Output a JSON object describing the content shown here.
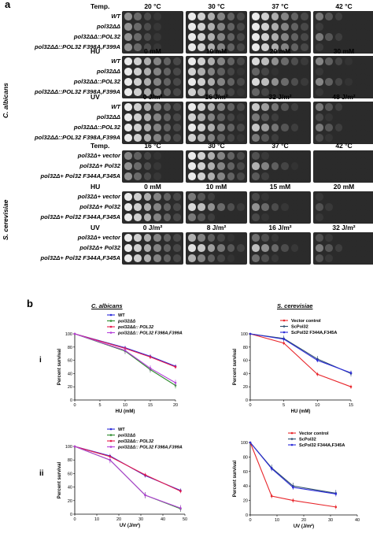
{
  "panel_a": {
    "letter": "a",
    "species": [
      "C. albicans",
      "S. cerevisiae"
    ],
    "blocks": [
      {
        "cond": "Temp.",
        "cols": [
          "20 °C",
          "30 °C",
          "37 °C",
          "42 °C"
        ],
        "rows": [
          "WT",
          "pol32ΔΔ",
          "pol32ΔΔ::POL32",
          "pol32ΔΔ::POL32 F398A,F399A"
        ],
        "growth": [
          [
            0.6,
            1,
            1,
            0.5
          ],
          [
            0.6,
            1,
            1,
            0.15
          ],
          [
            0.6,
            1,
            1,
            0.5
          ],
          [
            0.6,
            1,
            1,
            0.15
          ]
        ]
      },
      {
        "cond": "HU",
        "cols": [
          "0 mM",
          "10 mM",
          "20 mM",
          "30 mM"
        ],
        "rows": [
          "WT",
          "pol32ΔΔ",
          "pol32ΔΔ::POL32",
          "pol32ΔΔ::POL32 F398A,F399A"
        ],
        "growth": [
          [
            1,
            1,
            0.9,
            0.55
          ],
          [
            1,
            0.85,
            0.4,
            0.1
          ],
          [
            1,
            1,
            0.9,
            0.55
          ],
          [
            1,
            0.85,
            0.4,
            0.1
          ]
        ]
      },
      {
        "cond": "UV",
        "cols": [
          "0 J/m²",
          "16 J/m²",
          "32 J/m²",
          "48 J/m²"
        ],
        "rows": [
          "WT",
          "pol32ΔΔ",
          "pol32ΔΔ::POL32",
          "pol32ΔΔ::POL32 F398A,F399A"
        ],
        "growth": [
          [
            1,
            1,
            0.8,
            0.5
          ],
          [
            1,
            0.85,
            0.5,
            0.25
          ],
          [
            1,
            1,
            0.8,
            0.5
          ],
          [
            1,
            0.85,
            0.5,
            0.25
          ]
        ]
      },
      {
        "cond": "Temp.",
        "cols": [
          "16 °C",
          "30 °C",
          "37 °C",
          "42 °C"
        ],
        "rows": [
          "pol32Δ+ vector",
          "pol32Δ+ Pol32",
          "pol32Δ+ Pol32 F344A,F345A"
        ],
        "growth": [
          [
            0.55,
            1,
            0.3,
            0
          ],
          [
            0.6,
            1,
            0.7,
            0
          ],
          [
            0.6,
            1,
            0.35,
            0
          ]
        ]
      },
      {
        "cond": "HU",
        "cols": [
          "0 mM",
          "10 mM",
          "15 mM",
          "20 mM"
        ],
        "rows": [
          "pol32Δ+ vector",
          "pol32Δ+ Pol32",
          "pol32Δ+ Pol32 F344A,F345A"
        ],
        "growth": [
          [
            1,
            0.5,
            0.25,
            0.1
          ],
          [
            1,
            0.9,
            0.6,
            0.3
          ],
          [
            1,
            0.5,
            0.25,
            0.1
          ]
        ]
      },
      {
        "cond": "UV",
        "cols": [
          "0 J/m²",
          "8 J/m²",
          "16 J/m²",
          "32 J/m²"
        ],
        "rows": [
          "pol32Δ+ vector",
          "pol32Δ+ Pol32",
          "pol32Δ+ Pol32 F344A,F345A"
        ],
        "growth": [
          [
            1,
            0.7,
            0.45,
            0.3
          ],
          [
            1,
            0.95,
            0.75,
            0.5
          ],
          [
            1,
            0.7,
            0.45,
            0.3
          ]
        ]
      }
    ]
  },
  "panel_b": {
    "letter": "b",
    "col_titles": [
      "C. albicans",
      "S. cerevisiae"
    ],
    "row_labels": [
      "i",
      "ii"
    ]
  },
  "chart_data": [
    {
      "type": "line",
      "xlabel": "HU (mM)",
      "ylabel": "Percent survival",
      "xlim": [
        0,
        20
      ],
      "ylim": [
        0,
        100
      ],
      "xticks": [
        0,
        5,
        10,
        15,
        20
      ],
      "yticks": [
        0,
        20,
        40,
        60,
        80,
        100
      ],
      "x": [
        0,
        10,
        15,
        20
      ],
      "series": [
        {
          "name": "WT",
          "color": "#2b2bd9",
          "values": [
            100,
            79,
            66,
            51
          ]
        },
        {
          "name": "pol32ΔΔ",
          "color": "#2e8b2e",
          "values": [
            100,
            74,
            46,
            22
          ]
        },
        {
          "name": "pol32ΔΔ:: POL32",
          "color": "#e6194b",
          "values": [
            100,
            78,
            65,
            50
          ]
        },
        {
          "name": "pol32ΔΔ:: POL32 F398A,F399A",
          "color": "#b43fd9",
          "values": [
            100,
            75,
            48,
            26
          ]
        }
      ]
    },
    {
      "type": "line",
      "xlabel": "HU (mM)",
      "ylabel": "Percent survival",
      "xlim": [
        0,
        15
      ],
      "ylim": [
        0,
        100
      ],
      "xticks": [
        0,
        5,
        10,
        15
      ],
      "yticks": [
        0,
        20,
        40,
        60,
        80,
        100
      ],
      "x": [
        0,
        5,
        10,
        15
      ],
      "series": [
        {
          "name": "Vector control",
          "color": "#e8262b",
          "values": [
            100,
            86,
            39,
            20
          ]
        },
        {
          "name": "ScPol32",
          "color": "#2f4f6f",
          "values": [
            100,
            93,
            62,
            40
          ]
        },
        {
          "name": "ScPol32 F344A,F345A",
          "color": "#2b2bd9",
          "values": [
            100,
            92,
            60,
            41
          ]
        }
      ]
    },
    {
      "type": "line",
      "xlabel": "UV (J/m²)",
      "ylabel": "Percent survival",
      "xlim": [
        0,
        50
      ],
      "ylim": [
        0,
        100
      ],
      "xticks": [
        0,
        10,
        20,
        30,
        40,
        50
      ],
      "yticks": [
        0,
        20,
        40,
        60,
        80,
        100
      ],
      "x": [
        0,
        16,
        32,
        48
      ],
      "series": [
        {
          "name": "WT",
          "color": "#2b2bd9",
          "values": [
            100,
            86,
            57,
            35
          ]
        },
        {
          "name": "pol32ΔΔ",
          "color": "#2e8b2e",
          "values": [
            100,
            80,
            28,
            8
          ]
        },
        {
          "name": "pol32ΔΔ:: POL32",
          "color": "#e6194b",
          "values": [
            100,
            85,
            58,
            34
          ]
        },
        {
          "name": "pol32ΔΔ:: POL32 F398A,F399A",
          "color": "#b43fd9",
          "values": [
            100,
            80,
            28,
            9
          ]
        }
      ]
    },
    {
      "type": "line",
      "xlabel": "UV (J/m²)",
      "ylabel": "Percent survival",
      "xlim": [
        0,
        40
      ],
      "ylim": [
        0,
        100
      ],
      "xticks": [
        0,
        10,
        20,
        30,
        40
      ],
      "yticks": [
        0,
        20,
        40,
        60,
        80,
        100
      ],
      "x": [
        0,
        8,
        16,
        32
      ],
      "series": [
        {
          "name": "Vector control",
          "color": "#e8262b",
          "values": [
            100,
            26,
            20,
            11
          ]
        },
        {
          "name": "ScPol32",
          "color": "#2f4f6f",
          "values": [
            100,
            65,
            40,
            30
          ]
        },
        {
          "name": "ScPol32 F344A,F345A",
          "color": "#2b2bd9",
          "values": [
            100,
            64,
            38,
            29
          ]
        }
      ]
    }
  ]
}
